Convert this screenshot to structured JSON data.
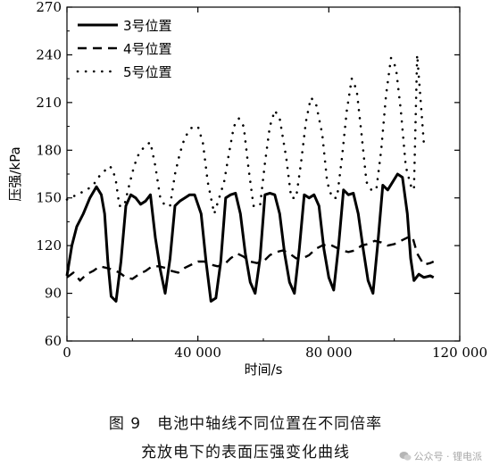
{
  "chart_data": {
    "type": "line",
    "xlabel": "时间/s",
    "ylabel": "压强/kPa",
    "xlim": [
      0,
      120000
    ],
    "ylim": [
      60,
      270
    ],
    "xticks": [
      0,
      40000,
      80000,
      120000
    ],
    "xtick_labels": [
      "0",
      "40 000",
      "80 000",
      "120 000"
    ],
    "yticks": [
      60,
      90,
      120,
      150,
      180,
      210,
      240,
      270
    ],
    "ytick_labels": [
      "60",
      "90",
      "120",
      "150",
      "180",
      "210",
      "240",
      "270"
    ],
    "grid": false,
    "legend_position": "top-left",
    "series": [
      {
        "name": "3号位置",
        "style": "solid",
        "x": [
          0,
          1500,
          3000,
          5000,
          7000,
          9000,
          10500,
          11500,
          12500,
          13500,
          15000,
          16500,
          18000,
          19500,
          21000,
          22500,
          24000,
          25500,
          27000,
          28500,
          30000,
          31500,
          33000,
          34500,
          36000,
          37500,
          39000,
          41000,
          42500,
          44000,
          45500,
          47000,
          48500,
          50000,
          51500,
          53000,
          54500,
          56000,
          57500,
          59000,
          60500,
          62000,
          63500,
          65000,
          66500,
          68000,
          69500,
          71000,
          72500,
          74000,
          75500,
          77000,
          78500,
          80000,
          81500,
          83000,
          84500,
          86000,
          87500,
          89000,
          90500,
          92000,
          93500,
          95000,
          96500,
          98000,
          99500,
          101000,
          102500,
          104000,
          105000,
          106000,
          107500,
          109000,
          111000,
          112000
        ],
        "y": [
          101,
          120,
          132,
          140,
          150,
          157,
          152,
          140,
          110,
          88,
          85,
          110,
          145,
          152,
          150,
          146,
          148,
          152,
          125,
          105,
          90,
          112,
          145,
          148,
          150,
          152,
          152,
          140,
          110,
          85,
          87,
          110,
          150,
          152,
          153,
          140,
          115,
          97,
          90,
          112,
          152,
          153,
          152,
          140,
          115,
          97,
          90,
          118,
          152,
          150,
          152,
          145,
          118,
          100,
          92,
          120,
          155,
          152,
          153,
          140,
          118,
          98,
          90,
          122,
          158,
          155,
          160,
          165,
          163,
          140,
          112,
          98,
          102,
          100,
          101,
          100
        ]
      },
      {
        "name": "4号位置",
        "style": "dashed",
        "x": [
          0,
          2000,
          4000,
          6000,
          8000,
          10000,
          12000,
          14000,
          16000,
          18000,
          20000,
          22000,
          24000,
          26000,
          28000,
          30000,
          32000,
          34000,
          36000,
          38000,
          40000,
          42000,
          44000,
          46000,
          48000,
          50000,
          52000,
          54000,
          56000,
          58000,
          60000,
          62000,
          64000,
          66000,
          68000,
          70000,
          72000,
          74000,
          76000,
          78000,
          80000,
          82000,
          84000,
          86000,
          88000,
          90000,
          92000,
          94000,
          96000,
          98000,
          100000,
          102000,
          104000,
          105500,
          107000,
          109000,
          111000,
          112000
        ],
        "y": [
          100,
          103,
          98,
          102,
          104,
          107,
          106,
          105,
          103,
          100,
          99,
          102,
          104,
          107,
          107,
          106,
          104,
          103,
          106,
          108,
          110,
          110,
          108,
          107,
          108,
          112,
          115,
          113,
          110,
          109,
          110,
          114,
          116,
          117,
          115,
          112,
          112,
          114,
          118,
          120,
          121,
          119,
          117,
          116,
          117,
          120,
          121,
          123,
          122,
          120,
          121,
          123,
          125,
          126,
          115,
          108,
          109,
          110
        ]
      },
      {
        "name": "5号位置",
        "style": "dotted",
        "x": [
          0,
          2000,
          4000,
          6000,
          8000,
          10000,
          11500,
          13000,
          14000,
          15000,
          16000,
          17500,
          19000,
          20500,
          22000,
          24000,
          25500,
          27000,
          28500,
          30000,
          31500,
          33000,
          34500,
          36000,
          38000,
          40000,
          41500,
          43000,
          45000,
          46500,
          48000,
          49500,
          51000,
          52500,
          54000,
          55500,
          57000,
          59000,
          60500,
          62000,
          63500,
          65000,
          67000,
          68500,
          70000,
          71500,
          73000,
          74500,
          76000,
          78000,
          79500,
          81000,
          82500,
          84000,
          85500,
          87000,
          88500,
          90000,
          91500,
          93000,
          94500,
          96000,
          97500,
          99000,
          100500,
          102000,
          103500,
          105000,
          106000,
          107000,
          109000,
          111000
        ],
        "y": [
          149,
          151,
          153,
          155,
          158,
          164,
          167,
          170,
          168,
          160,
          145,
          145,
          158,
          170,
          178,
          183,
          185,
          170,
          150,
          145,
          145,
          165,
          178,
          188,
          194,
          195,
          185,
          160,
          140,
          150,
          160,
          178,
          195,
          200,
          195,
          168,
          145,
          145,
          172,
          195,
          205,
          200,
          175,
          150,
          150,
          172,
          198,
          213,
          210,
          190,
          160,
          150,
          150,
          175,
          205,
          225,
          218,
          190,
          160,
          155,
          155,
          180,
          215,
          238,
          232,
          205,
          170,
          158,
          155,
          240,
          185,
          183
        ]
      }
    ]
  },
  "caption": {
    "line1": "图 9　电池中轴线不同位置在不同倍率",
    "line2": "充放电下的表面压强变化曲线"
  },
  "watermark": "公众号 · 锂电派"
}
